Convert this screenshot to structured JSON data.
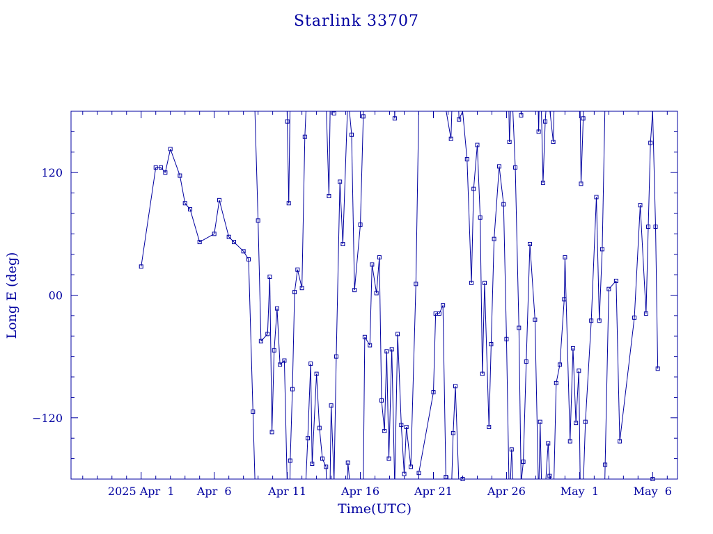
{
  "chart_data": {
    "type": "line",
    "title": "Starlink 33707",
    "xlabel": "Time(UTC)",
    "ylabel": "Long E (deg)",
    "color": "#0000a0",
    "xlim": [
      -2.8,
      38.7
    ],
    "ylim": [
      -180,
      180
    ],
    "y_ticks": [
      -120,
      0,
      120
    ],
    "y_tick_labels": [
      "−120",
      "00",
      "120"
    ],
    "x_ticks": [
      {
        "day": 2,
        "label": "2025 Apr  1"
      },
      {
        "day": 7,
        "label": "Apr  6"
      },
      {
        "day": 12,
        "label": "Apr 11"
      },
      {
        "day": 17,
        "label": "Apr 16"
      },
      {
        "day": 22,
        "label": "Apr 21"
      },
      {
        "day": 27,
        "label": "Apr 26"
      },
      {
        "day": 32,
        "label": "May  1"
      },
      {
        "day": 37,
        "label": "May  6"
      }
    ],
    "grid": false,
    "wrap_longitude": true,
    "x_note": "x values are fractional days on the April 2025 calendar (31 = Apr 30)",
    "points": [
      [
        2.0,
        28
      ],
      [
        3.0,
        125
      ],
      [
        3.35,
        125
      ],
      [
        3.65,
        120
      ],
      [
        4.0,
        143
      ],
      [
        4.65,
        117
      ],
      [
        5.0,
        90
      ],
      [
        5.35,
        84
      ],
      [
        6.0,
        52
      ],
      [
        7.0,
        60
      ],
      [
        7.35,
        93
      ],
      [
        8.0,
        57
      ],
      [
        8.35,
        52
      ],
      [
        9.0,
        43
      ],
      [
        9.35,
        35
      ],
      [
        9.65,
        -114
      ],
      [
        10.0,
        73
      ],
      [
        10.2,
        -45
      ],
      [
        10.65,
        -38
      ],
      [
        10.8,
        18
      ],
      [
        10.95,
        -134
      ],
      [
        11.1,
        -54
      ],
      [
        11.3,
        -13
      ],
      [
        11.5,
        -68
      ],
      [
        11.8,
        -64
      ],
      [
        12.0,
        170
      ],
      [
        12.1,
        90
      ],
      [
        12.2,
        -162
      ],
      [
        12.35,
        -92
      ],
      [
        12.5,
        3
      ],
      [
        12.7,
        25
      ],
      [
        13.0,
        7
      ],
      [
        13.2,
        155
      ],
      [
        13.4,
        -140
      ],
      [
        13.6,
        -67
      ],
      [
        13.7,
        -165
      ],
      [
        14.0,
        -77
      ],
      [
        14.2,
        -130
      ],
      [
        14.4,
        -160
      ],
      [
        14.65,
        -168
      ],
      [
        14.85,
        97
      ],
      [
        15.0,
        -108
      ],
      [
        15.2,
        178
      ],
      [
        15.35,
        -60
      ],
      [
        15.6,
        111
      ],
      [
        15.8,
        50
      ],
      [
        16.15,
        -164
      ],
      [
        16.4,
        157
      ],
      [
        16.6,
        5
      ],
      [
        17.0,
        69
      ],
      [
        17.2,
        175
      ],
      [
        17.3,
        -41
      ],
      [
        17.65,
        -49
      ],
      [
        17.8,
        30
      ],
      [
        18.1,
        2
      ],
      [
        18.3,
        37
      ],
      [
        18.45,
        -103
      ],
      [
        18.65,
        -133
      ],
      [
        18.8,
        -55
      ],
      [
        18.95,
        -160
      ],
      [
        19.15,
        -53
      ],
      [
        19.35,
        173
      ],
      [
        19.55,
        -38
      ],
      [
        19.8,
        -127
      ],
      [
        20.0,
        -175
      ],
      [
        20.15,
        -129
      ],
      [
        20.45,
        -168
      ],
      [
        20.8,
        11
      ],
      [
        21.0,
        -174
      ],
      [
        22.0,
        -95
      ],
      [
        22.15,
        -18
      ],
      [
        22.4,
        -18
      ],
      [
        22.65,
        -10
      ],
      [
        22.85,
        -178
      ],
      [
        23.2,
        153
      ],
      [
        23.35,
        -135
      ],
      [
        23.5,
        -89
      ],
      [
        23.75,
        172
      ],
      [
        24.0,
        -180
      ],
      [
        24.3,
        133
      ],
      [
        24.6,
        12
      ],
      [
        24.75,
        104
      ],
      [
        25.0,
        147
      ],
      [
        25.2,
        76
      ],
      [
        25.35,
        -77
      ],
      [
        25.5,
        12
      ],
      [
        25.8,
        -129
      ],
      [
        25.95,
        -48
      ],
      [
        26.15,
        55
      ],
      [
        26.5,
        126
      ],
      [
        26.8,
        89
      ],
      [
        27.0,
        -43
      ],
      [
        27.2,
        150
      ],
      [
        27.35,
        -151
      ],
      [
        27.6,
        125
      ],
      [
        27.85,
        -32
      ],
      [
        28.0,
        176
      ],
      [
        28.15,
        -163
      ],
      [
        28.35,
        -65
      ],
      [
        28.6,
        50
      ],
      [
        28.95,
        -24
      ],
      [
        29.2,
        160
      ],
      [
        29.3,
        -124
      ],
      [
        29.5,
        110
      ],
      [
        29.65,
        170
      ],
      [
        29.85,
        -145
      ],
      [
        29.95,
        -177
      ],
      [
        30.2,
        150
      ],
      [
        30.4,
        -86
      ],
      [
        30.65,
        -68
      ],
      [
        30.95,
        -4
      ],
      [
        31.0,
        37
      ],
      [
        31.35,
        -143
      ],
      [
        31.55,
        -52
      ],
      [
        31.75,
        -125
      ],
      [
        31.95,
        -74
      ],
      [
        32.1,
        109
      ],
      [
        32.25,
        173
      ],
      [
        32.4,
        -124
      ],
      [
        32.8,
        -25
      ],
      [
        33.15,
        96
      ],
      [
        33.35,
        -25
      ],
      [
        33.55,
        45
      ],
      [
        33.75,
        -166
      ],
      [
        34.0,
        6
      ],
      [
        34.5,
        14
      ],
      [
        34.75,
        -143
      ],
      [
        35.75,
        -22
      ],
      [
        36.15,
        88
      ],
      [
        36.55,
        -18
      ],
      [
        36.7,
        67
      ],
      [
        36.85,
        149
      ],
      [
        37.0,
        -180
      ],
      [
        37.2,
        67
      ],
      [
        37.35,
        -72
      ]
    ]
  }
}
